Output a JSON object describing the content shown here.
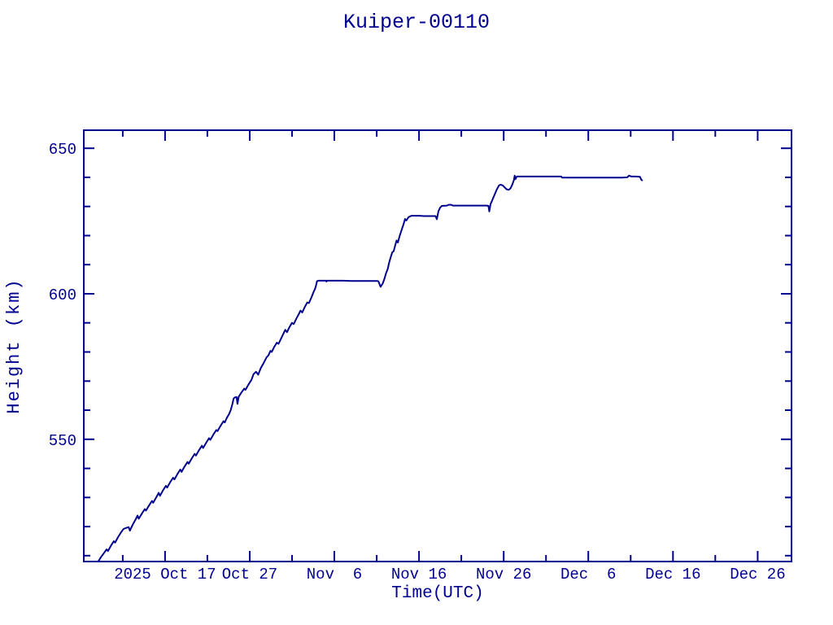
{
  "title": "Kuiper-00110",
  "ink_color": "#00008f",
  "background_color": "#ffffff",
  "chart_data": {
    "type": "line",
    "title": "Kuiper-00110",
    "xlabel": "Time(UTC)",
    "ylabel": "Height (km)",
    "x_unit": "days relative to 2025 Oct 17 (UTC)",
    "y_unit": "km",
    "xlim": [
      -9.6,
      74.0
    ],
    "ylim": [
      508,
      656.2
    ],
    "grid": false,
    "legend": null,
    "line_color": "#00008f",
    "x_major_ticks": [
      {
        "value": 0,
        "label": "2025 Oct 17"
      },
      {
        "value": 10,
        "label": "Oct 27"
      },
      {
        "value": 20,
        "label": "Nov  6"
      },
      {
        "value": 30,
        "label": "Nov 16"
      },
      {
        "value": 40,
        "label": "Nov 26"
      },
      {
        "value": 50,
        "label": "Dec  6"
      },
      {
        "value": 60,
        "label": "Dec 16"
      },
      {
        "value": 70,
        "label": "Dec 26"
      }
    ],
    "x_minor_ticks": [
      -5,
      5,
      15,
      25,
      35,
      45,
      55,
      65
    ],
    "y_major_ticks": [
      {
        "value": 550,
        "label": "550"
      },
      {
        "value": 600,
        "label": "600"
      },
      {
        "value": 650,
        "label": "650"
      }
    ],
    "y_minor_ticks": [
      510,
      520,
      530,
      540,
      560,
      570,
      580,
      590,
      610,
      620,
      630,
      640
    ],
    "series": [
      {
        "name": "Kuiper-00110 orbit height",
        "points": [
          [
            -7.9,
            508.0
          ],
          [
            -7.55,
            509.6
          ],
          [
            -7.2,
            511.0
          ],
          [
            -6.9,
            512.2
          ],
          [
            -6.75,
            511.6
          ],
          [
            -6.4,
            513.4
          ],
          [
            -6.05,
            515.0
          ],
          [
            -5.9,
            514.5
          ],
          [
            -5.55,
            516.4
          ],
          [
            -5.2,
            518.0
          ],
          [
            -4.9,
            519.2
          ],
          [
            -4.55,
            519.6
          ],
          [
            -4.3,
            519.8
          ],
          [
            -4.15,
            518.6
          ],
          [
            -3.8,
            520.8
          ],
          [
            -3.45,
            522.6
          ],
          [
            -3.25,
            523.8
          ],
          [
            -3.1,
            522.7
          ],
          [
            -2.75,
            524.4
          ],
          [
            -2.4,
            526.0
          ],
          [
            -2.25,
            525.5
          ],
          [
            -1.9,
            527.2
          ],
          [
            -1.55,
            528.8
          ],
          [
            -1.4,
            528.2
          ],
          [
            -1.05,
            530.0
          ],
          [
            -0.75,
            531.6
          ],
          [
            -0.6,
            530.6
          ],
          [
            -0.25,
            532.4
          ],
          [
            0.1,
            534.0
          ],
          [
            0.25,
            533.4
          ],
          [
            0.6,
            535.2
          ],
          [
            0.95,
            536.8
          ],
          [
            1.1,
            536.2
          ],
          [
            1.45,
            538.0
          ],
          [
            1.8,
            539.6
          ],
          [
            1.95,
            538.8
          ],
          [
            2.3,
            540.6
          ],
          [
            2.65,
            542.2
          ],
          [
            2.8,
            541.6
          ],
          [
            3.15,
            543.4
          ],
          [
            3.5,
            545.0
          ],
          [
            3.65,
            544.4
          ],
          [
            4.0,
            546.2
          ],
          [
            4.35,
            547.8
          ],
          [
            4.5,
            547.0
          ],
          [
            4.85,
            548.8
          ],
          [
            5.2,
            550.4
          ],
          [
            5.35,
            549.8
          ],
          [
            5.7,
            551.6
          ],
          [
            6.05,
            553.2
          ],
          [
            6.2,
            552.8
          ],
          [
            6.55,
            554.6
          ],
          [
            6.9,
            556.2
          ],
          [
            7.05,
            555.8
          ],
          [
            7.3,
            557.4
          ],
          [
            7.55,
            558.6
          ],
          [
            7.75,
            560.0
          ],
          [
            7.95,
            562.0
          ],
          [
            8.1,
            564.0
          ],
          [
            8.25,
            564.4
          ],
          [
            8.45,
            564.5
          ],
          [
            8.55,
            562.2
          ],
          [
            8.7,
            564.6
          ],
          [
            9.0,
            566.0
          ],
          [
            9.35,
            567.4
          ],
          [
            9.5,
            567.0
          ],
          [
            9.85,
            568.8
          ],
          [
            10.2,
            570.4
          ],
          [
            10.45,
            572.4
          ],
          [
            10.75,
            573.2
          ],
          [
            11.0,
            572.2
          ],
          [
            11.3,
            574.4
          ],
          [
            11.65,
            576.2
          ],
          [
            12.0,
            578.2
          ],
          [
            12.2,
            578.8
          ],
          [
            12.45,
            580.4
          ],
          [
            12.6,
            580.0
          ],
          [
            12.9,
            581.8
          ],
          [
            13.2,
            583.2
          ],
          [
            13.4,
            582.8
          ],
          [
            13.7,
            584.6
          ],
          [
            14.0,
            586.4
          ],
          [
            14.2,
            587.6
          ],
          [
            14.4,
            586.8
          ],
          [
            14.7,
            588.6
          ],
          [
            15.0,
            590.0
          ],
          [
            15.2,
            589.6
          ],
          [
            15.5,
            591.4
          ],
          [
            15.8,
            593.0
          ],
          [
            16.0,
            594.2
          ],
          [
            16.2,
            593.6
          ],
          [
            16.5,
            595.4
          ],
          [
            16.8,
            597.0
          ],
          [
            17.0,
            596.8
          ],
          [
            17.3,
            598.8
          ],
          [
            17.55,
            600.6
          ],
          [
            17.7,
            601.6
          ],
          [
            17.8,
            602.4
          ],
          [
            17.95,
            604.3
          ],
          [
            18.1,
            604.5
          ],
          [
            19.0,
            604.5
          ],
          [
            19.06,
            604.2
          ],
          [
            19.12,
            604.5
          ],
          [
            20.0,
            604.5
          ],
          [
            21.0,
            604.5
          ],
          [
            22.0,
            604.4
          ],
          [
            23.0,
            604.4
          ],
          [
            24.0,
            604.4
          ],
          [
            25.0,
            604.4
          ],
          [
            25.2,
            604.3
          ],
          [
            25.45,
            602.4
          ],
          [
            25.7,
            603.5
          ],
          [
            25.9,
            605.0
          ],
          [
            26.1,
            607.0
          ],
          [
            26.3,
            608.5
          ],
          [
            26.45,
            610.5
          ],
          [
            26.65,
            612.5
          ],
          [
            26.85,
            614.3
          ],
          [
            27.0,
            614.6
          ],
          [
            27.2,
            616.8
          ],
          [
            27.35,
            618.3
          ],
          [
            27.5,
            617.6
          ],
          [
            27.7,
            619.8
          ],
          [
            27.95,
            622.0
          ],
          [
            28.2,
            624.2
          ],
          [
            28.35,
            625.7
          ],
          [
            28.5,
            625.2
          ],
          [
            28.75,
            626.3
          ],
          [
            29.1,
            626.8
          ],
          [
            30.0,
            626.8
          ],
          [
            30.6,
            626.7
          ],
          [
            31.5,
            626.7
          ],
          [
            31.95,
            626.7
          ],
          [
            32.1,
            625.6
          ],
          [
            32.3,
            628.4
          ],
          [
            32.5,
            629.6
          ],
          [
            32.7,
            630.2
          ],
          [
            33.3,
            630.3
          ],
          [
            33.5,
            630.6
          ],
          [
            33.8,
            630.6
          ],
          [
            34.0,
            630.3
          ],
          [
            35.0,
            630.3
          ],
          [
            36.0,
            630.3
          ],
          [
            37.0,
            630.3
          ],
          [
            38.0,
            630.3
          ],
          [
            38.2,
            630.2
          ],
          [
            38.3,
            628.3
          ],
          [
            38.45,
            630.8
          ],
          [
            38.6,
            631.8
          ],
          [
            38.8,
            633.2
          ],
          [
            39.0,
            634.6
          ],
          [
            39.2,
            635.9
          ],
          [
            39.45,
            637.2
          ],
          [
            39.65,
            637.5
          ],
          [
            39.9,
            637.2
          ],
          [
            40.1,
            636.6
          ],
          [
            40.35,
            635.9
          ],
          [
            40.6,
            635.7
          ],
          [
            40.8,
            636.2
          ],
          [
            41.0,
            637.4
          ],
          [
            41.2,
            639.0
          ],
          [
            41.3,
            640.6
          ],
          [
            41.4,
            639.4
          ],
          [
            41.55,
            640.3
          ],
          [
            43.0,
            640.3
          ],
          [
            44.0,
            640.3
          ],
          [
            45.0,
            640.3
          ],
          [
            46.0,
            640.3
          ],
          [
            46.8,
            640.3
          ],
          [
            46.9,
            639.9
          ],
          [
            48.0,
            639.9
          ],
          [
            50.0,
            639.9
          ],
          [
            52.0,
            639.9
          ],
          [
            54.0,
            639.9
          ],
          [
            54.6,
            640.0
          ],
          [
            54.8,
            640.6
          ],
          [
            55.1,
            640.3
          ],
          [
            55.6,
            640.3
          ],
          [
            56.1,
            640.2
          ],
          [
            56.25,
            639.2
          ],
          [
            56.35,
            639.0
          ]
        ]
      }
    ]
  }
}
